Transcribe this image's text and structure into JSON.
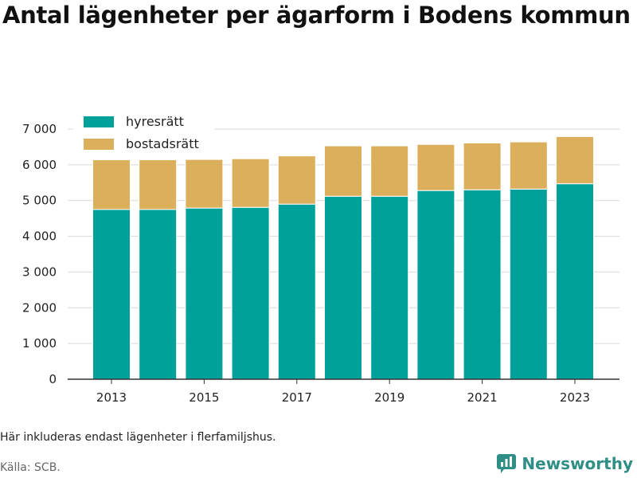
{
  "title": "Antal lägenheter per ägarform i Bodens kommun",
  "note": "Här inkluderas endast lägenheter i flerfamiljshus.",
  "source": "Källa: SCB.",
  "brand": "Newsworthy",
  "colors": {
    "hyresratt": "#00a19a",
    "bostadsratt": "#dcaf5c",
    "brand": "#2f8f86",
    "grid": "#d9d9d9",
    "axis": "#333333"
  },
  "chart_data": {
    "type": "bar",
    "stacked": true,
    "x": [
      2013,
      2014,
      2015,
      2016,
      2017,
      2018,
      2019,
      2020,
      2021,
      2022,
      2023
    ],
    "xticks": [
      "2013",
      "2015",
      "2017",
      "2019",
      "2021",
      "2023"
    ],
    "yticks": [
      "0",
      "1 000",
      "2 000",
      "3 000",
      "4 000",
      "5 000",
      "6 000",
      "7 000"
    ],
    "ylim": [
      0,
      7000
    ],
    "grid": true,
    "legend_position": "top-left",
    "series": [
      {
        "name": "hyresrätt",
        "values": [
          4750,
          4750,
          4790,
          4810,
          4900,
          5120,
          5120,
          5280,
          5300,
          5320,
          5470
        ]
      },
      {
        "name": "bostadsrätt",
        "values": [
          1390,
          1390,
          1360,
          1360,
          1350,
          1410,
          1410,
          1290,
          1310,
          1320,
          1320
        ]
      }
    ]
  }
}
